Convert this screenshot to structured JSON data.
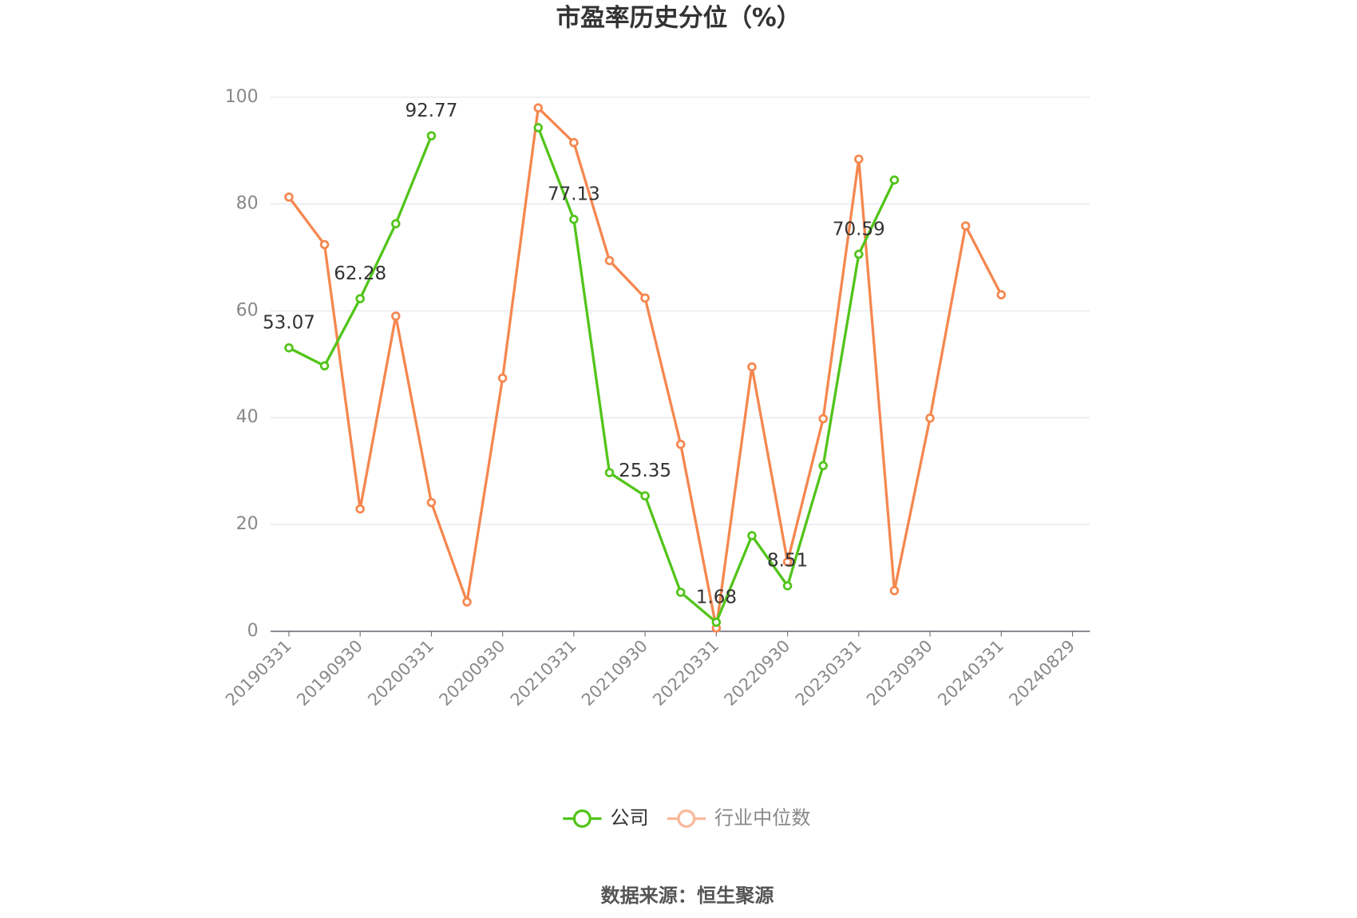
{
  "chart_data": {
    "type": "line",
    "title": "市盈率历史分位（%）",
    "source": "数据来源：恒生聚源",
    "categories": [
      "20190331",
      null,
      "20190930",
      null,
      "20200331",
      null,
      "20200930",
      null,
      "20210331",
      null,
      "20210930",
      null,
      "20220331",
      null,
      "20220930",
      null,
      "20230331",
      null,
      "20230930",
      null,
      "20240331",
      null,
      "20240829"
    ],
    "series": [
      {
        "name": "公司",
        "color": "#52c41a",
        "values": [
          53.07,
          49.7,
          62.28,
          76.3,
          92.77,
          null,
          null,
          94.3,
          77.13,
          29.7,
          25.35,
          7.3,
          1.68,
          17.9,
          8.51,
          31.0,
          70.59,
          84.5,
          null,
          null,
          null,
          null,
          null
        ],
        "value_labels": [
          "53.07",
          null,
          "62.28",
          null,
          "92.77",
          null,
          null,
          null,
          "77.13",
          null,
          "25.35",
          null,
          "1.68",
          null,
          "8.51",
          null,
          "70.59",
          null,
          null,
          null,
          null,
          null,
          null
        ]
      },
      {
        "name": "行业中位数",
        "color": "#f5874f",
        "values": [
          81.3,
          72.4,
          22.9,
          59.0,
          24.1,
          5.5,
          47.4,
          98.0,
          91.5,
          69.4,
          62.4,
          35.0,
          0.6,
          49.5,
          13.0,
          39.8,
          88.4,
          7.6,
          39.9,
          75.9,
          63.0,
          null,
          null
        ]
      }
    ],
    "ylim": [
      0,
      100
    ],
    "yticks": [
      0,
      20,
      40,
      60,
      80,
      100
    ],
    "grid": true
  }
}
